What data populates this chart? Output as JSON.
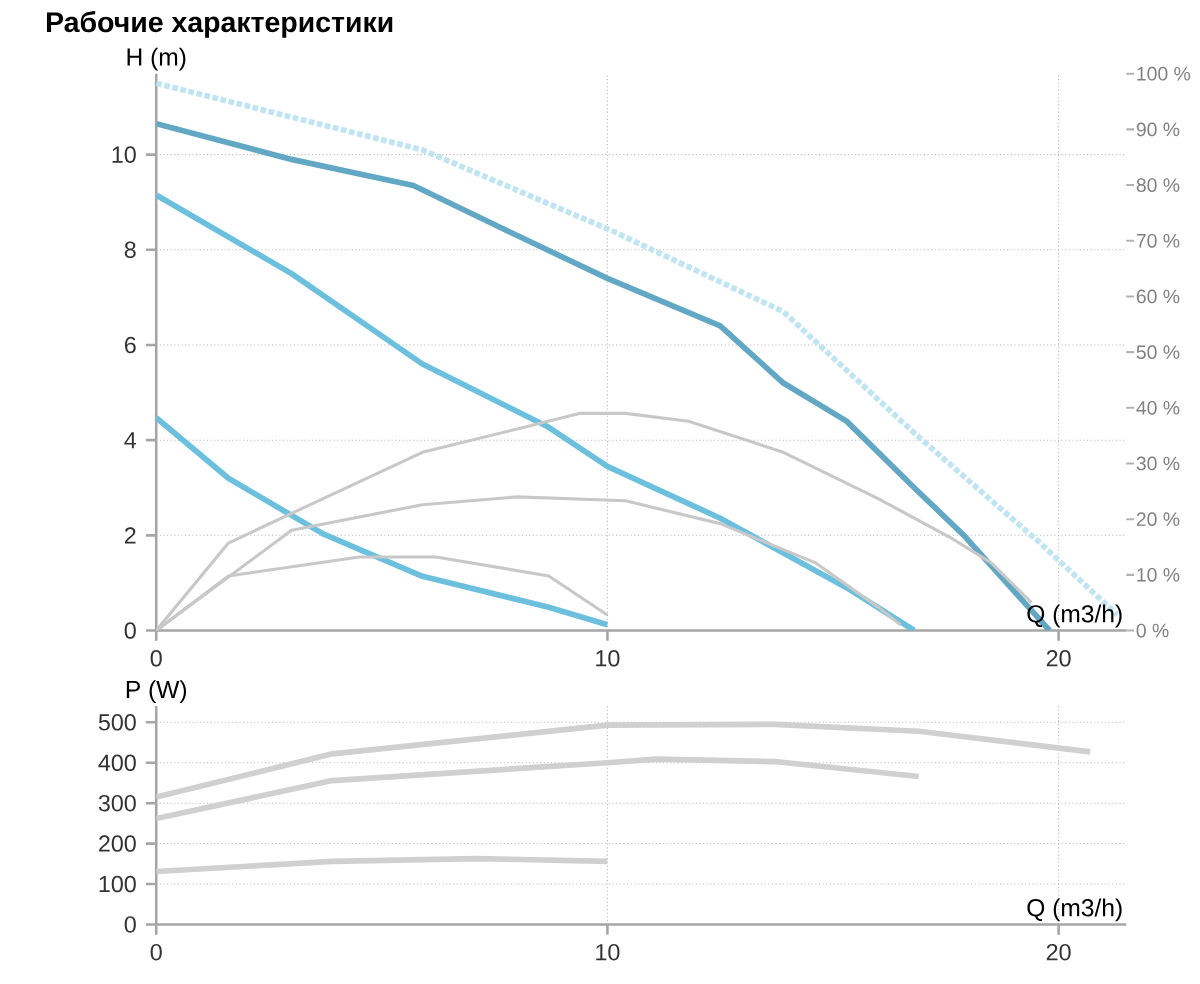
{
  "chart_data": [
    {
      "type": "line",
      "title": "Рабочие характеристики",
      "xlabel": "Q (m3/h)",
      "ylabel": "H (m)",
      "xlim": [
        0,
        21.5
      ],
      "ylim": [
        0,
        11.7
      ],
      "y2lim": [
        0,
        100
      ],
      "xticks": [
        0,
        10,
        20
      ],
      "yticks": [
        0,
        2,
        4,
        6,
        8,
        10
      ],
      "y2ticks": [
        {
          "value": 0,
          "label": "0 %"
        },
        {
          "value": 10,
          "label": "10 %"
        },
        {
          "value": 20,
          "label": "20 %"
        },
        {
          "value": 30,
          "label": "30 %"
        },
        {
          "value": 40,
          "label": "40 %"
        },
        {
          "value": 50,
          "label": "50 %"
        },
        {
          "value": 60,
          "label": "60 %"
        },
        {
          "value": 70,
          "label": "70 %"
        },
        {
          "value": 80,
          "label": "80 %"
        },
        {
          "value": 90,
          "label": "90 %"
        },
        {
          "value": 100,
          "label": "100 %"
        }
      ],
      "grid": true,
      "marker": "none",
      "series": [
        {
          "color": "#c0e4f2",
          "line_style": "dotted",
          "x": [
            0,
            5.9,
            10.1,
            13.9,
            16.8,
            19.6,
            21.3
          ],
          "values": [
            11.5,
            10.1,
            8.4,
            6.7,
            4.15,
            1.83,
            0.33
          ]
        },
        {
          "color": "#c8c8c8",
          "axis": "y2",
          "x": [
            0,
            1.6,
            3.7,
            5.9,
            9.4,
            10.4,
            11.8,
            13.9,
            16,
            17.6,
            18.5,
            19.4
          ],
          "values": [
            0,
            15.7,
            23.7,
            32,
            39,
            39,
            37.6,
            32,
            23.7,
            16.7,
            12.2,
            5
          ]
        },
        {
          "color": "#c8c8c8",
          "axis": "y2",
          "x": [
            0,
            3,
            5.9,
            8,
            10.4,
            12.5,
            14.6,
            16,
            16.5
          ],
          "values": [
            0,
            18,
            22.6,
            24,
            23.3,
            19.2,
            12.2,
            4.2,
            1
          ]
        },
        {
          "color": "#c8c8c8",
          "axis": "y2",
          "x": [
            0,
            1.6,
            4.5,
            6.2,
            8.7,
            10
          ],
          "values": [
            0,
            9.8,
            13.2,
            13.2,
            9.8,
            2.8
          ]
        },
        {
          "color": "#62a8c4",
          "x": [
            0,
            3,
            5.7,
            8,
            10,
            12.5,
            13.9,
            15.3,
            16.8,
            17.9,
            19.8
          ],
          "values": [
            10.65,
            9.9,
            9.35,
            8.3,
            7.4,
            6.4,
            5.2,
            4.4,
            3,
            2,
            0
          ]
        },
        {
          "color": "#6cc0de",
          "x": [
            0,
            3,
            5.9,
            8.7,
            10,
            12.5,
            15.3,
            16.8
          ],
          "values": [
            9.15,
            7.5,
            5.6,
            4.27,
            3.45,
            2.36,
            0.9,
            0
          ]
        },
        {
          "color": "#6cc0de",
          "x": [
            0,
            1.6,
            3.7,
            5.9,
            8.7,
            10
          ],
          "values": [
            4.47,
            3.2,
            2.03,
            1.14,
            0.49,
            0.12
          ]
        }
      ]
    },
    {
      "type": "line",
      "xlabel": "Q (m3/h)",
      "ylabel": "P (W)",
      "xlim": [
        0,
        21.5
      ],
      "ylim": [
        0,
        540
      ],
      "xticks": [
        0,
        10,
        20
      ],
      "yticks": [
        0,
        100,
        200,
        300,
        400,
        500
      ],
      "grid": true,
      "marker": "none",
      "series": [
        {
          "color": "#d0d0d0",
          "x": [
            0,
            3.9,
            10,
            13.7,
            16.9,
            20.7
          ],
          "values": [
            315,
            422,
            493,
            495,
            478,
            427
          ]
        },
        {
          "color": "#d0d0d0",
          "x": [
            0,
            3.9,
            10,
            11.1,
            13.7,
            16.9
          ],
          "values": [
            262,
            356,
            400,
            409,
            403,
            366
          ]
        },
        {
          "color": "#d0d0d0",
          "x": [
            0,
            3.9,
            7.1,
            10
          ],
          "values": [
            131,
            156,
            163,
            156
          ]
        }
      ]
    }
  ]
}
